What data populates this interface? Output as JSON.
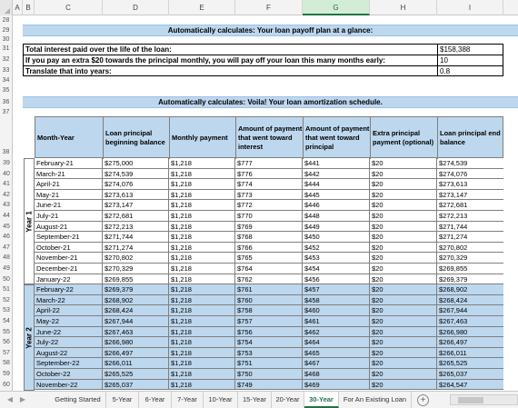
{
  "columns": [
    "A",
    "B",
    "C",
    "D",
    "E",
    "F",
    "G",
    "H",
    "I"
  ],
  "selected_column": "G",
  "row_numbers_top": [
    "28",
    "29",
    "30",
    "31",
    "32",
    "33",
    "34",
    "35",
    "36",
    "37",
    "38"
  ],
  "row_numbers_data": [
    "39",
    "40",
    "41",
    "42",
    "43",
    "44",
    "45",
    "46",
    "47",
    "48",
    "49",
    "50",
    "51",
    "52",
    "53",
    "54",
    "55",
    "56",
    "57",
    "58",
    "59",
    "60"
  ],
  "summary": {
    "title": "Automatically calculates: Your loan payoff plan at a glance:",
    "rows": [
      {
        "label": "Total interest paid over the life of the loan:",
        "value": "$158,388"
      },
      {
        "label": "If you pay an extra $20 towards the principal monthly, you will pay off your loan this many months early:",
        "value": "10"
      },
      {
        "label": "Translate that into years:",
        "value": "0.8"
      }
    ]
  },
  "schedule": {
    "title": "Automatically calculates: Voila! Your loan amortization schedule.",
    "headers": [
      "Month-Year",
      "Loan principal beginning balance",
      "Monthly payment",
      "Amount of payment that went toward interest",
      "Amount of payment that went toward principal",
      "Extra principal payment (optional)",
      "Loan principal end balance"
    ],
    "year_labels": [
      "Year 1",
      "Year 2"
    ],
    "rows": [
      [
        "February-21",
        "$275,000",
        "$1,218",
        "$777",
        "$441",
        "$20",
        "$274,539"
      ],
      [
        "March-21",
        "$274,539",
        "$1,218",
        "$776",
        "$442",
        "$20",
        "$274,076"
      ],
      [
        "April-21",
        "$274,076",
        "$1,218",
        "$774",
        "$444",
        "$20",
        "$273,613"
      ],
      [
        "May-21",
        "$273,613",
        "$1,218",
        "$773",
        "$445",
        "$20",
        "$273,147"
      ],
      [
        "June-21",
        "$273,147",
        "$1,218",
        "$772",
        "$446",
        "$20",
        "$272,681"
      ],
      [
        "July-21",
        "$272,681",
        "$1,218",
        "$770",
        "$448",
        "$20",
        "$272,213"
      ],
      [
        "August-21",
        "$272,213",
        "$1,218",
        "$769",
        "$449",
        "$20",
        "$271,744"
      ],
      [
        "September-21",
        "$271,744",
        "$1,218",
        "$768",
        "$450",
        "$20",
        "$271,274"
      ],
      [
        "October-21",
        "$271,274",
        "$1,218",
        "$766",
        "$452",
        "$20",
        "$270,802"
      ],
      [
        "November-21",
        "$270,802",
        "$1,218",
        "$765",
        "$453",
        "$20",
        "$270,329"
      ],
      [
        "December-21",
        "$270,329",
        "$1,218",
        "$764",
        "$454",
        "$20",
        "$269,855"
      ],
      [
        "January-22",
        "$269,855",
        "$1,218",
        "$762",
        "$456",
        "$20",
        "$269,379"
      ],
      [
        "February-22",
        "$269,379",
        "$1,218",
        "$761",
        "$457",
        "$20",
        "$268,902"
      ],
      [
        "March-22",
        "$268,902",
        "$1,218",
        "$760",
        "$458",
        "$20",
        "$268,424"
      ],
      [
        "April-22",
        "$268,424",
        "$1,218",
        "$758",
        "$460",
        "$20",
        "$267,944"
      ],
      [
        "May-22",
        "$267,944",
        "$1,218",
        "$757",
        "$461",
        "$20",
        "$267,463"
      ],
      [
        "June-22",
        "$267,463",
        "$1,218",
        "$756",
        "$462",
        "$20",
        "$266,980"
      ],
      [
        "July-22",
        "$266,980",
        "$1,218",
        "$754",
        "$464",
        "$20",
        "$266,497"
      ],
      [
        "August-22",
        "$266,497",
        "$1,218",
        "$753",
        "$465",
        "$20",
        "$266,011"
      ],
      [
        "September-22",
        "$266,011",
        "$1,218",
        "$751",
        "$467",
        "$20",
        "$265,525"
      ],
      [
        "October-22",
        "$265,525",
        "$1,218",
        "$750",
        "$468",
        "$20",
        "$265,037"
      ],
      [
        "November-22",
        "$265,037",
        "$1,218",
        "$749",
        "$469",
        "$20",
        "$264,547"
      ]
    ]
  },
  "sheet_tabs": [
    "Getting Started",
    "5-Year",
    "6-Year",
    "7-Year",
    "10-Year",
    "15-Year",
    "20-Year",
    "30-Year",
    "For An Existing Loan"
  ],
  "active_tab": "30-Year",
  "add_sheet_label": "+",
  "nav_prev": "◀",
  "nav_next": "▶",
  "colors": {
    "band": "#bdd7ee",
    "accent": "#217346"
  }
}
